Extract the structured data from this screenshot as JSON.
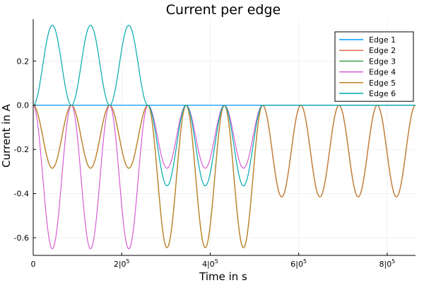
{
  "chart_data": {
    "type": "line",
    "title": "Current per edge",
    "xlabel": "Time in s",
    "ylabel": "Current in A",
    "xlim": [
      0,
      864000
    ],
    "ylim": [
      -0.68,
      0.39
    ],
    "xticks": [
      0,
      200000,
      400000,
      600000,
      800000
    ],
    "xtick_labels": [
      {
        "base": "0",
        "exp": ""
      },
      {
        "base": "2|0",
        "exp": "5"
      },
      {
        "base": "4|0",
        "exp": "5"
      },
      {
        "base": "6|0",
        "exp": "5"
      },
      {
        "base": "8|0",
        "exp": "5"
      }
    ],
    "yticks": [
      -0.6,
      -0.4,
      -0.2,
      0.0,
      0.2
    ],
    "ytick_labels": [
      "-0.6",
      "-0.4",
      "-0.2",
      "0.0",
      "0.2"
    ],
    "grid": true,
    "legend_position": "top-right",
    "period": 86400,
    "series": [
      {
        "name": "Edge 1",
        "color": "#009AFA",
        "segments": [
          [
            0,
            864000,
            0
          ]
        ]
      },
      {
        "name": "Edge 2",
        "color": "#E36F47",
        "segments": [
          [
            0,
            259200,
            -0.285
          ],
          [
            259200,
            518400,
            -0.645
          ],
          [
            518400,
            864000,
            -0.415
          ]
        ]
      },
      {
        "name": "Edge 3",
        "color": "#3EA44E",
        "segments": [
          [
            0,
            259200,
            -0.285
          ],
          [
            259200,
            518400,
            -0.645
          ],
          [
            518400,
            864000,
            -0.415
          ]
        ]
      },
      {
        "name": "Edge 4",
        "color": "#DA5CD3",
        "segments": [
          [
            0,
            259200,
            -0.65
          ],
          [
            259200,
            518400,
            -0.285
          ],
          [
            518400,
            864000,
            -0.415
          ]
        ]
      },
      {
        "name": "Edge 5",
        "color": "#C68225",
        "segments": [
          [
            0,
            259200,
            -0.285
          ],
          [
            259200,
            518400,
            -0.645
          ],
          [
            518400,
            864000,
            -0.415
          ]
        ]
      },
      {
        "name": "Edge 6",
        "color": "#00A9AD",
        "segments": [
          [
            0,
            259200,
            0.362
          ],
          [
            259200,
            518400,
            -0.365
          ],
          [
            518400,
            864000,
            0
          ]
        ]
      }
    ]
  }
}
